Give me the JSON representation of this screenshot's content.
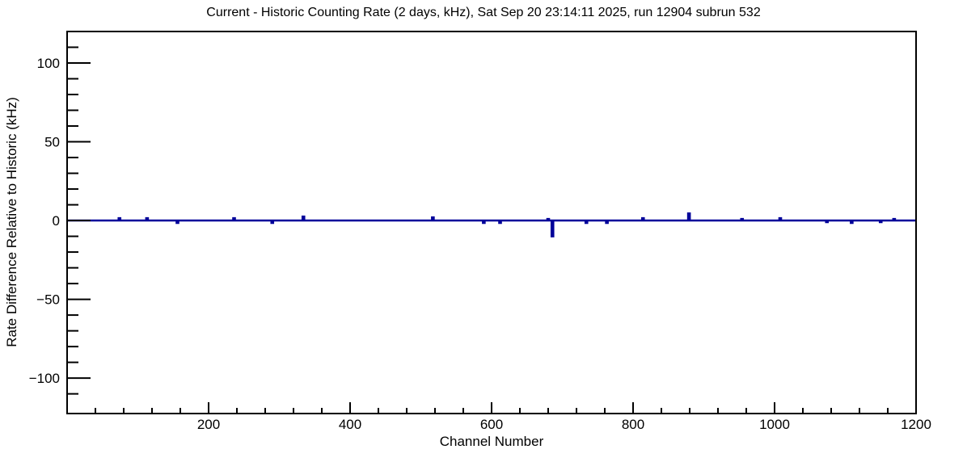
{
  "chart_data": {
    "type": "line",
    "title": "Current - Historic Counting Rate (2 days, kHz), Sat Sep 20 23:14:11 2025, run 12904 subrun 532",
    "xlabel": "Channel Number",
    "ylabel": "Rate Difference Relative to Historic (kHz)",
    "xlim": [
      0,
      1200
    ],
    "ylim": [
      -122.5,
      120
    ],
    "grid": false,
    "legend": "none",
    "frame_color": "#000000",
    "line_color": "#00009a",
    "x_major_ticks": [
      {
        "v": 200,
        "label": "200"
      },
      {
        "v": 400,
        "label": "400"
      },
      {
        "v": 600,
        "label": "600"
      },
      {
        "v": 800,
        "label": "800"
      },
      {
        "v": 1000,
        "label": "1000"
      },
      {
        "v": 1200,
        "label": "1200"
      }
    ],
    "x_minor_step": 40,
    "y_major_ticks": [
      {
        "v": -100,
        "label": "−100"
      },
      {
        "v": -50,
        "label": "−50"
      },
      {
        "v": 0,
        "label": "0"
      },
      {
        "v": 50,
        "label": "50"
      },
      {
        "v": 100,
        "label": "100"
      }
    ],
    "y_minor_step": 10,
    "y_minor_range": [
      -110,
      110
    ],
    "series": [
      {
        "name": "rate-difference-vs-channel",
        "baseline": 0,
        "spikes": [
          {
            "channel": 74,
            "value": 1.5
          },
          {
            "channel": 113,
            "value": 1.5
          },
          {
            "channel": 156,
            "value": -1.5
          },
          {
            "channel": 236,
            "value": 1.5
          },
          {
            "channel": 290,
            "value": -1.5
          },
          {
            "channel": 334,
            "value": 2.5
          },
          {
            "channel": 517,
            "value": 2.0
          },
          {
            "channel": 589,
            "value": -1.5
          },
          {
            "channel": 612,
            "value": -1.5
          },
          {
            "channel": 680,
            "value": 1.0
          },
          {
            "channel": 686,
            "value": -10.0
          },
          {
            "channel": 734,
            "value": -1.5
          },
          {
            "channel": 763,
            "value": -1.5
          },
          {
            "channel": 814,
            "value": 1.5
          },
          {
            "channel": 879,
            "value": 4.5
          },
          {
            "channel": 954,
            "value": 1.0
          },
          {
            "channel": 1008,
            "value": 1.5
          },
          {
            "channel": 1074,
            "value": -1.0
          },
          {
            "channel": 1109,
            "value": -1.5
          },
          {
            "channel": 1150,
            "value": -1.0
          },
          {
            "channel": 1169,
            "value": 1.0
          }
        ]
      }
    ]
  }
}
